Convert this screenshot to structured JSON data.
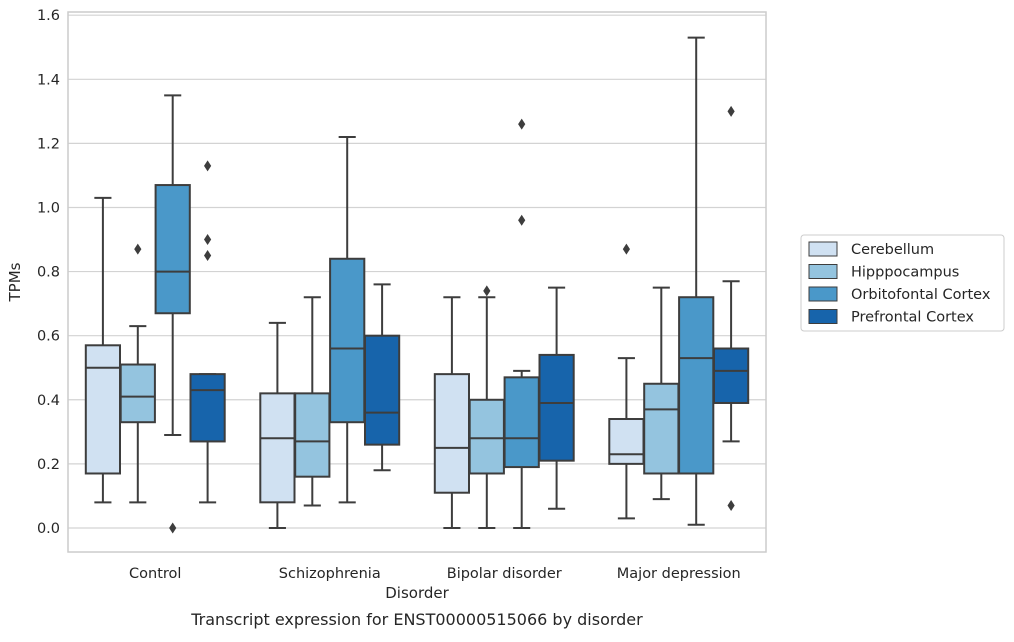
{
  "chart_data": {
    "type": "box",
    "title": "",
    "caption": "Transcript expression for ENST00000515066 by disorder",
    "xlabel": "Disorder",
    "ylabel": "TPMs",
    "ylim": [
      -0.075,
      1.61
    ],
    "yticks": [
      "0.0",
      "0.2",
      "0.4",
      "0.6",
      "0.8",
      "1.0",
      "1.2",
      "1.4",
      "1.6"
    ],
    "grid": true,
    "legend_position": "right",
    "categories": [
      "Control",
      "Schizophrenia",
      "Bipolar disorder",
      "Major depression"
    ],
    "series": [
      {
        "name": "Cerebellum",
        "color": "#d0e1f2",
        "boxes": [
          {
            "whisker_low": 0.08,
            "q1": 0.17,
            "median": 0.5,
            "q3": 0.57,
            "whisker_high": 1.03,
            "outliers": []
          },
          {
            "whisker_low": 0.0,
            "q1": 0.08,
            "median": 0.28,
            "q3": 0.42,
            "whisker_high": 0.64,
            "outliers": []
          },
          {
            "whisker_low": 0.0,
            "q1": 0.11,
            "median": 0.25,
            "q3": 0.48,
            "whisker_high": 0.72,
            "outliers": []
          },
          {
            "whisker_low": 0.03,
            "q1": 0.2,
            "median": 0.23,
            "q3": 0.34,
            "whisker_high": 0.53,
            "outliers": [
              0.87
            ]
          }
        ]
      },
      {
        "name": "Hipppocampus",
        "color": "#94c4df",
        "boxes": [
          {
            "whisker_low": 0.08,
            "q1": 0.33,
            "median": 0.41,
            "q3": 0.51,
            "whisker_high": 0.63,
            "outliers": [
              0.87
            ]
          },
          {
            "whisker_low": 0.07,
            "q1": 0.16,
            "median": 0.27,
            "q3": 0.42,
            "whisker_high": 0.72,
            "outliers": []
          },
          {
            "whisker_low": 0.0,
            "q1": 0.17,
            "median": 0.28,
            "q3": 0.4,
            "whisker_high": 0.72,
            "outliers": [
              0.74
            ]
          },
          {
            "whisker_low": 0.09,
            "q1": 0.17,
            "median": 0.37,
            "q3": 0.45,
            "whisker_high": 0.75,
            "outliers": []
          }
        ]
      },
      {
        "name": "Orbitofontal Cortex",
        "color": "#4a98c9",
        "boxes": [
          {
            "whisker_low": 0.29,
            "q1": 0.67,
            "median": 0.8,
            "q3": 1.07,
            "whisker_high": 1.35,
            "outliers": [
              0.0
            ]
          },
          {
            "whisker_low": 0.08,
            "q1": 0.33,
            "median": 0.56,
            "q3": 0.84,
            "whisker_high": 1.22,
            "outliers": []
          },
          {
            "whisker_low": 0.0,
            "q1": 0.19,
            "median": 0.28,
            "q3": 0.47,
            "whisker_high": 0.49,
            "outliers": [
              0.96,
              1.26
            ]
          },
          {
            "whisker_low": 0.01,
            "q1": 0.17,
            "median": 0.53,
            "q3": 0.72,
            "whisker_high": 1.53,
            "outliers": []
          }
        ]
      },
      {
        "name": "Prefrontal Cortex",
        "color": "#1764ab",
        "boxes": [
          {
            "whisker_low": 0.08,
            "q1": 0.27,
            "median": 0.43,
            "q3": 0.48,
            "whisker_high": 0.48,
            "outliers": [
              0.85,
              0.9,
              1.13
            ]
          },
          {
            "whisker_low": 0.18,
            "q1": 0.26,
            "median": 0.36,
            "q3": 0.6,
            "whisker_high": 0.76,
            "outliers": []
          },
          {
            "whisker_low": 0.06,
            "q1": 0.21,
            "median": 0.39,
            "q3": 0.54,
            "whisker_high": 0.75,
            "outliers": []
          },
          {
            "whisker_low": 0.27,
            "q1": 0.39,
            "median": 0.49,
            "q3": 0.56,
            "whisker_high": 0.77,
            "outliers": [
              0.07,
              1.3
            ]
          }
        ]
      }
    ]
  }
}
